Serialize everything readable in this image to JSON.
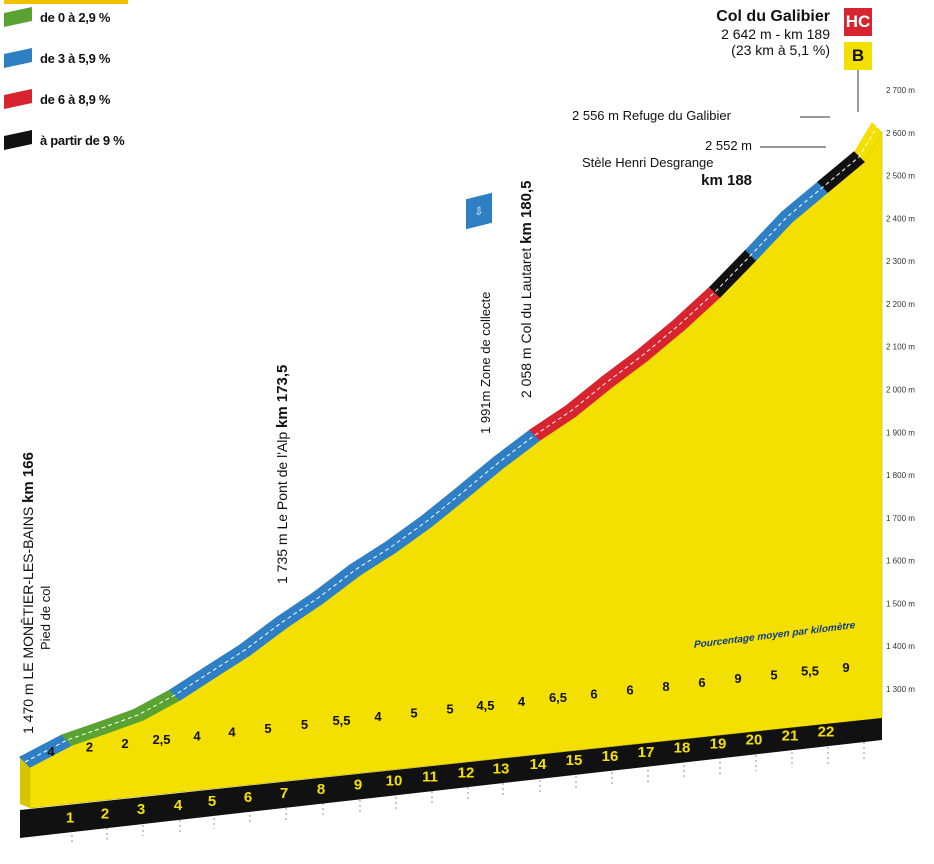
{
  "legend": [
    {
      "label": "de 0 à 2,9 %",
      "color": "#5aa332"
    },
    {
      "label": "de 3 à 5,9 %",
      "color": "#2f7fc4"
    },
    {
      "label": "de 6 à 8,9 %",
      "color": "#d7242e"
    },
    {
      "label": "à partir de 9 %",
      "color": "#111111"
    }
  ],
  "summit": {
    "name": "Col du Galibier",
    "line1": "2 642 m - km 189",
    "line2": "(23 km à 5,1 %)",
    "badge_category": "HC",
    "badge_bonus": "B"
  },
  "annotations": {
    "refuge": "2 556 m Refuge du Galibier",
    "stele_alt": "2 552 m",
    "stele_name": "Stèle Henri Desgrange",
    "stele_km": "km 188",
    "start_main": "1 470 m LE MONÊTIER-LES-BAINS",
    "start_km": "km 166",
    "start_sub": "Pied de col",
    "pont_main": "1 735 m Le Pont de l'Alp",
    "pont_km": "km 173,5",
    "zone": "1 991m Zone de collecte",
    "lautaret_main": "2 058 m Col du Lautaret",
    "lautaret_km": "km 180,5",
    "collect_icon_name": "collect-zone-icon",
    "pct_note": "Pourcentage moyen par kilomètre"
  },
  "colors": {
    "fill": "#f4e000",
    "dark": "#111111",
    "green": "#5aa332",
    "blue": "#2f7fc4",
    "red": "#d7242e",
    "black": "#111111"
  },
  "chart_data": {
    "type": "area",
    "title": "Col du Galibier",
    "xlabel": "",
    "ylabel": "",
    "x_ticks": [
      "1",
      "2",
      "3",
      "4",
      "5",
      "6",
      "7",
      "8",
      "9",
      "10",
      "11",
      "12",
      "13",
      "14",
      "15",
      "16",
      "17",
      "18",
      "19",
      "20",
      "21",
      "22"
    ],
    "gradients": [
      "4",
      "2",
      "2",
      "2,5",
      "4",
      "4",
      "5",
      "5",
      "5,5",
      "4",
      "5",
      "5",
      "4,5",
      "4",
      "6,5",
      "6",
      "6",
      "8",
      "6",
      "9",
      "5",
      "5,5",
      "9"
    ],
    "y_ticks": [
      "1 300 m",
      "1 400 m",
      "1 500 m",
      "1 600 m",
      "1 700 m",
      "1 800 m",
      "1 900 m",
      "2 000 m",
      "2 100 m",
      "2 200 m",
      "2 300 m",
      "2 400 m",
      "2 500 m",
      "2 600 m",
      "2 700 m"
    ],
    "ylim": [
      1300,
      2700
    ],
    "grid": true,
    "segments": [
      {
        "km_start": 0,
        "km_end": 1,
        "pct": 4,
        "color": "#2f7fc4"
      },
      {
        "km_start": 1,
        "km_end": 2,
        "pct": 2,
        "color": "#5aa332"
      },
      {
        "km_start": 2,
        "km_end": 3,
        "pct": 2,
        "color": "#5aa332"
      },
      {
        "km_start": 3,
        "km_end": 4,
        "pct": 2.5,
        "color": "#5aa332"
      },
      {
        "km_start": 4,
        "km_end": 5,
        "pct": 4,
        "color": "#2f7fc4"
      },
      {
        "km_start": 5,
        "km_end": 6,
        "pct": 4,
        "color": "#2f7fc4"
      },
      {
        "km_start": 6,
        "km_end": 7,
        "pct": 5,
        "color": "#2f7fc4"
      },
      {
        "km_start": 7,
        "km_end": 8,
        "pct": 5,
        "color": "#2f7fc4"
      },
      {
        "km_start": 8,
        "km_end": 9,
        "pct": 5.5,
        "color": "#2f7fc4"
      },
      {
        "km_start": 9,
        "km_end": 10,
        "pct": 4,
        "color": "#2f7fc4"
      },
      {
        "km_start": 10,
        "km_end": 11,
        "pct": 5,
        "color": "#2f7fc4"
      },
      {
        "km_start": 11,
        "km_end": 12,
        "pct": 5,
        "color": "#2f7fc4"
      },
      {
        "km_start": 12,
        "km_end": 13,
        "pct": 4.5,
        "color": "#2f7fc4"
      },
      {
        "km_start": 13,
        "km_end": 14,
        "pct": 4,
        "color": "#2f7fc4"
      },
      {
        "km_start": 14,
        "km_end": 15,
        "pct": 6.5,
        "color": "#d7242e"
      },
      {
        "km_start": 15,
        "km_end": 16,
        "pct": 6,
        "color": "#d7242e"
      },
      {
        "km_start": 16,
        "km_end": 17,
        "pct": 6,
        "color": "#d7242e"
      },
      {
        "km_start": 17,
        "km_end": 18,
        "pct": 8,
        "color": "#d7242e"
      },
      {
        "km_start": 18,
        "km_end": 19,
        "pct": 6,
        "color": "#d7242e"
      },
      {
        "km_start": 19,
        "km_end": 20,
        "pct": 9,
        "color": "#111111"
      },
      {
        "km_start": 20,
        "km_end": 21,
        "pct": 5,
        "color": "#2f7fc4"
      },
      {
        "km_start": 21,
        "km_end": 22,
        "pct": 5.5,
        "color": "#2f7fc4"
      },
      {
        "km_start": 22,
        "km_end": 23,
        "pct": 9,
        "color": "#111111"
      }
    ]
  }
}
